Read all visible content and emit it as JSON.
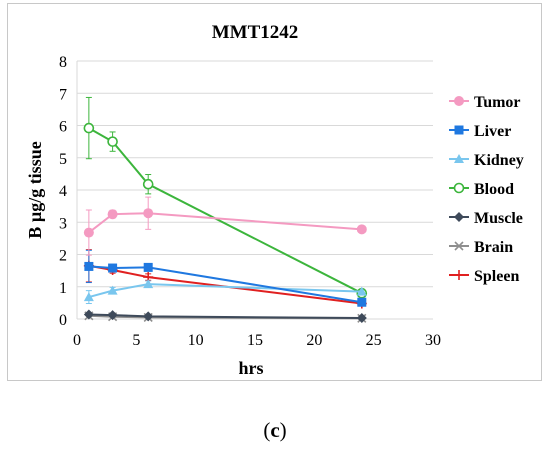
{
  "caption": {
    "open": "(",
    "letter": "c",
    "close": ")"
  },
  "chart_data": {
    "type": "line",
    "title": "MMT1242",
    "xlabel": "hrs",
    "ylabel": "B µg/g tissue",
    "xlim": [
      0,
      30
    ],
    "ylim": [
      0,
      8
    ],
    "x_ticks": [
      0,
      5,
      10,
      15,
      20,
      25,
      30
    ],
    "y_ticks": [
      0,
      1,
      2,
      3,
      4,
      5,
      6,
      7,
      8
    ],
    "grid": "horizontal",
    "legend": "right",
    "series": [
      {
        "name": "Tumor",
        "color": "#f49ac1",
        "marker": "circle-filled",
        "x": [
          1,
          3,
          6,
          24
        ],
        "y": [
          2.68,
          3.25,
          3.28,
          2.78
        ],
        "err": [
          0.7,
          0.12,
          0.5,
          0
        ]
      },
      {
        "name": "Liver",
        "color": "#1f78e0",
        "marker": "square",
        "x": [
          1,
          3,
          6,
          24
        ],
        "y": [
          1.63,
          1.58,
          1.6,
          0.52
        ],
        "err": [
          0.5,
          0.05,
          0.05,
          0
        ]
      },
      {
        "name": "Kidney",
        "color": "#79c6ee",
        "marker": "triangle",
        "x": [
          1,
          3,
          6,
          24
        ],
        "y": [
          0.68,
          0.88,
          1.08,
          0.85
        ],
        "err": [
          0.2,
          0.1,
          0.1,
          0
        ]
      },
      {
        "name": "Blood",
        "color": "#3cb53c",
        "marker": "circle-open",
        "x": [
          1,
          3,
          6,
          24
        ],
        "y": [
          5.92,
          5.5,
          4.18,
          0.8
        ],
        "err": [
          0.95,
          0.3,
          0.3,
          0
        ]
      },
      {
        "name": "Muscle",
        "color": "#3e4a5a",
        "marker": "diamond",
        "x": [
          1,
          3,
          6,
          24
        ],
        "y": [
          0.14,
          0.12,
          0.08,
          0.03
        ],
        "err": [
          0,
          0,
          0,
          0
        ]
      },
      {
        "name": "Brain",
        "color": "#8e8e8e",
        "marker": "x",
        "x": [
          1,
          3,
          6,
          24
        ],
        "y": [
          0.1,
          0.07,
          0.05,
          0.02
        ],
        "err": [
          0,
          0,
          0,
          0
        ]
      },
      {
        "name": "Spleen",
        "color": "#e02020",
        "marker": "plus",
        "x": [
          1,
          3,
          6,
          24
        ],
        "y": [
          1.65,
          1.52,
          1.3,
          0.48
        ],
        "err": [
          0.5,
          0.1,
          0.1,
          0
        ]
      }
    ]
  }
}
